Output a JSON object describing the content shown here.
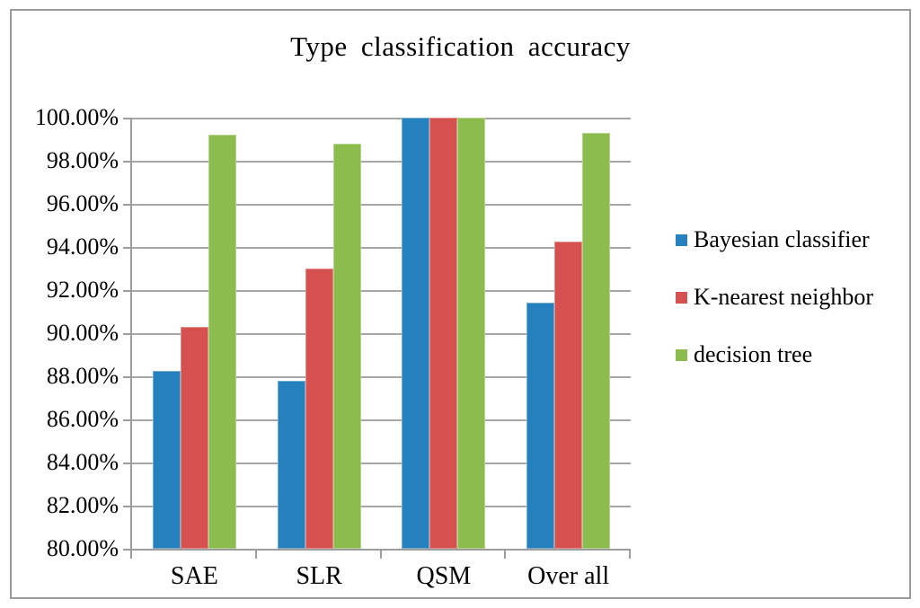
{
  "figure": {
    "background": "#FFFFFF",
    "border_color": "#9B9B9B",
    "axis_color": "#9C9C9C",
    "gridline_color": "#A6A6A6"
  },
  "chart_data": {
    "type": "bar",
    "title": "Type classification accuracy",
    "categories": [
      "SAE",
      "SLR",
      "QSM",
      "Over all"
    ],
    "series": [
      {
        "name": "Bayesian classifier",
        "color": "#2581BE",
        "values": [
          88.25,
          87.8,
          100,
          91.4
        ]
      },
      {
        "name": "K-nearest neighbor",
        "color": "#D5514F",
        "values": [
          90.3,
          93.0,
          100,
          94.25
        ]
      },
      {
        "name": "decision tree",
        "color": "#8CBC4D",
        "values": [
          99.2,
          98.8,
          100,
          99.3
        ]
      }
    ],
    "ylim": [
      80,
      100
    ],
    "ytick_step": 2,
    "ytick_labels": [
      "100.00%",
      "98.00%",
      "96.00%",
      "94.00%",
      "92.00%",
      "90.00%",
      "88.00%",
      "86.00%",
      "84.00%",
      "82.00%",
      "80.00%"
    ],
    "xlabel": "",
    "ylabel": "",
    "grid": true,
    "legend_position": "right"
  }
}
